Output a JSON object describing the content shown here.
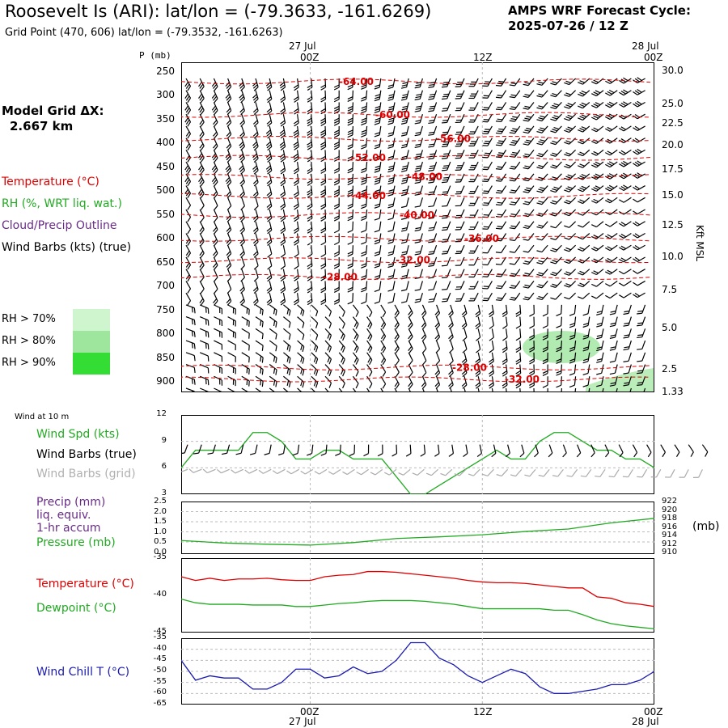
{
  "header": {
    "title": "Roosevelt Is (ARI):  lat/lon = (-79.3633, -161.6269)",
    "grid_point": "Grid Point (470, 606) lat/lon = (-79.3532, -161.6263)",
    "cycle_line1": "AMPS WRF Forecast Cycle:",
    "cycle_line2": "2025-07-26 / 12  Z",
    "model_grid_line1": "Model Grid ΔX:",
    "model_grid_line2": "2.667 km"
  },
  "legend": {
    "temperature": "Temperature (°C)",
    "rh": "RH (%, WRT liq. wat.)",
    "cloud": "Cloud/Precip Outline",
    "wind": "Wind Barbs (kts) (true)",
    "rh70": "RH > 70%",
    "rh80": "RH > 80%",
    "rh90": "RH > 90%"
  },
  "colors": {
    "temperature": "#dd0000",
    "rh": "#22aa22",
    "cloud": "#6a2a8a",
    "windchill": "#1a1ab0",
    "rh70": "#cef5ce",
    "rh80": "#9ee69e",
    "rh90": "#33dd33"
  },
  "time_axis": {
    "top_date_left": "27 Jul",
    "top_date_right": "28 Jul",
    "ticks": [
      "00Z",
      "12Z",
      "00Z"
    ],
    "bottom_date_left": "27 Jul",
    "bottom_date_right": "28 Jul"
  },
  "chart_data": [
    {
      "type": "heatmap",
      "name": "sounding",
      "x_hours": [
        -9,
        24
      ],
      "left_axis_label": "P (mb)",
      "pressure_ticks": [
        "250",
        "300",
        "350",
        "400",
        "450",
        "500",
        "550",
        "600",
        "650",
        "700",
        "750",
        "800",
        "850",
        "900"
      ],
      "right_axis_label": "Kft MSL",
      "height_ticks": [
        "30.0",
        "25.0",
        "22.5",
        "20.0",
        "17.5",
        "15.0",
        "12.5",
        "10.0",
        "7.5",
        "5.0",
        "2.5",
        "1.33"
      ],
      "temperature_contours": [
        {
          "label": "-64.00",
          "p": 270
        },
        {
          "label": "-60.00",
          "p": 340
        },
        {
          "label": "-56.00",
          "p": 390
        },
        {
          "label": "-52.00",
          "p": 430
        },
        {
          "label": "-48.00",
          "p": 470
        },
        {
          "label": "-44.00",
          "p": 510
        },
        {
          "label": "-40.00",
          "p": 550
        },
        {
          "label": "-36.00",
          "p": 600
        },
        {
          "label": "-32.00",
          "p": 645
        },
        {
          "label": "-28.00",
          "p": 680
        },
        {
          "label": "-28.00",
          "p": 870
        },
        {
          "label": "-32.00",
          "p": 895
        }
      ]
    },
    {
      "type": "line",
      "name": "wind10m",
      "title": "Wind at 10 m",
      "ylim": [
        3,
        12
      ],
      "yticks": [
        "12",
        "9",
        "6",
        "3"
      ],
      "labels": {
        "spd": "Wind Spd (kts)",
        "barbs_true": "Wind Barbs (true)",
        "barbs_grid": "Wind Barbs (grid)"
      },
      "x": [
        -9,
        -8,
        -7,
        -6,
        -5,
        -4,
        -3,
        -2,
        -1,
        0,
        1,
        2,
        3,
        4,
        5,
        6,
        7,
        8,
        9,
        10,
        11,
        12,
        13,
        14,
        15,
        16,
        17,
        18,
        19,
        20,
        21,
        22,
        23,
        24
      ],
      "series": [
        {
          "name": "Wind Spd (kts)",
          "values": [
            6,
            8,
            8,
            8,
            8,
            10,
            10,
            9,
            7,
            7,
            8,
            8,
            7,
            7,
            7,
            5,
            3,
            3,
            4,
            5,
            6,
            7,
            8,
            7,
            7,
            9,
            10,
            10,
            9,
            8,
            8,
            7,
            7,
            6
          ]
        }
      ]
    },
    {
      "type": "line",
      "name": "precip_pressure",
      "labels": {
        "precip": "Precip (mm)",
        "liq": "liq. equiv.",
        "accum": "1-hr accum",
        "pressure": "Pressure (mb)"
      },
      "precip_ticks": [
        "2.5",
        "2.0",
        "1.5",
        "1.0",
        "0.5",
        "0.0"
      ],
      "pressure_ticks": [
        "922",
        "920",
        "918",
        "916",
        "914",
        "912",
        "910"
      ],
      "pressure_unit": "(mb)",
      "ylim_pressure": [
        910,
        922
      ],
      "x": [
        -9,
        -6,
        -3,
        0,
        3,
        6,
        9,
        12,
        15,
        18,
        21,
        24
      ],
      "series": [
        {
          "name": "Pressure (mb)",
          "values": [
            912.9,
            912.3,
            912.0,
            911.8,
            912.4,
            913.4,
            913.8,
            914.3,
            915.1,
            915.7,
            917.2,
            918.3
          ]
        }
      ]
    },
    {
      "type": "line",
      "name": "temp_dew",
      "labels": {
        "temp": "Temperature (°C)",
        "dew": "Dewpoint (°C)"
      },
      "ylim": [
        -45,
        -35
      ],
      "yticks": [
        "-35",
        "-40",
        "-45"
      ],
      "x": [
        -9,
        -8,
        -7,
        -6,
        -5,
        -4,
        -3,
        -2,
        -1,
        0,
        1,
        2,
        3,
        4,
        5,
        6,
        7,
        8,
        9,
        10,
        11,
        12,
        13,
        14,
        15,
        16,
        17,
        18,
        19,
        20,
        21,
        22,
        23,
        24
      ],
      "series": [
        {
          "name": "Temperature (°C)",
          "values": [
            -37.5,
            -38,
            -37.7,
            -38,
            -37.8,
            -37.8,
            -37.7,
            -37.9,
            -38,
            -38,
            -37.5,
            -37.3,
            -37.2,
            -36.8,
            -36.8,
            -36.9,
            -37.1,
            -37.3,
            -37.5,
            -37.7,
            -38,
            -38.2,
            -38.3,
            -38.3,
            -38.4,
            -38.6,
            -38.8,
            -39,
            -39,
            -40.2,
            -40.4,
            -41,
            -41.2,
            -41.5
          ]
        },
        {
          "name": "Dewpoint (°C)",
          "values": [
            -40.5,
            -41,
            -41.2,
            -41.2,
            -41.2,
            -41.3,
            -41.3,
            -41.3,
            -41.5,
            -41.5,
            -41.3,
            -41.1,
            -41,
            -40.8,
            -40.7,
            -40.7,
            -40.7,
            -40.8,
            -41,
            -41.2,
            -41.5,
            -41.8,
            -41.8,
            -41.8,
            -41.8,
            -41.8,
            -42,
            -42,
            -42.6,
            -43.3,
            -43.8,
            -44.1,
            -44.3,
            -44.5
          ]
        }
      ]
    },
    {
      "type": "line",
      "name": "windchill",
      "labels": {
        "wc": "Wind Chill T (°C)"
      },
      "ylim": [
        -65,
        -35
      ],
      "yticks": [
        "-35",
        "-40",
        "-45",
        "-50",
        "-55",
        "-60",
        "-65"
      ],
      "x": [
        -9,
        -8,
        -7,
        -6,
        -5,
        -4,
        -3,
        -2,
        -1,
        0,
        1,
        2,
        3,
        4,
        5,
        6,
        7,
        8,
        9,
        10,
        11,
        12,
        13,
        14,
        15,
        16,
        17,
        18,
        19,
        20,
        21,
        22,
        23,
        24
      ],
      "series": [
        {
          "name": "Wind Chill T (°C)",
          "values": [
            -45,
            -54,
            -52,
            -53,
            -53,
            -58,
            -58,
            -55,
            -49,
            -49,
            -53,
            -52,
            -48,
            -51,
            -50,
            -45,
            -37,
            -37,
            -44,
            -47,
            -52,
            -55,
            -52,
            -49,
            -51,
            -57,
            -60,
            -60,
            -59,
            -58,
            -56,
            -56,
            -54,
            -50
          ]
        }
      ]
    }
  ]
}
